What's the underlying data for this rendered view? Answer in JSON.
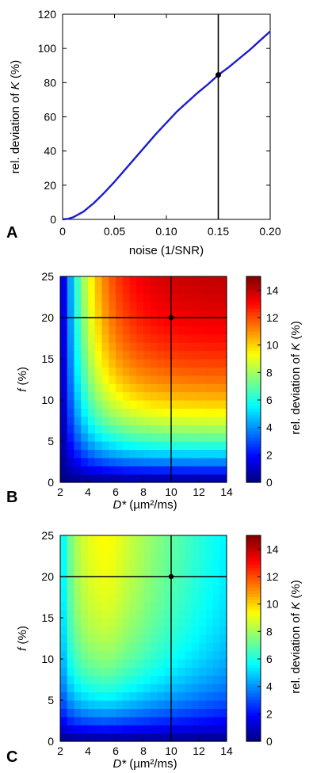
{
  "chart_data": [
    {
      "type": "line",
      "panel": "A",
      "xlabel": "noise (1/SNR)",
      "ylabel": "rel. deviation of K (%)",
      "xlim": [
        0,
        0.2
      ],
      "ylim": [
        0,
        120
      ],
      "xticks": [
        0,
        0.05,
        0.1,
        0.15,
        0.2
      ],
      "xtick_labels": [
        "0",
        "0.05",
        "0.10",
        "0.15",
        "0.20"
      ],
      "yticks": [
        0,
        20,
        40,
        60,
        80,
        100,
        120
      ],
      "ytick_labels": [
        "0",
        "20",
        "40",
        "60",
        "80",
        "100",
        "120"
      ],
      "x": [
        0,
        0.005,
        0.01,
        0.02,
        0.03,
        0.04,
        0.05,
        0.06,
        0.07,
        0.08,
        0.09,
        0.1,
        0.11,
        0.12,
        0.13,
        0.14,
        0.15,
        0.16,
        0.17,
        0.18,
        0.19,
        0.2
      ],
      "y": [
        0,
        0.3,
        1.2,
        4.5,
        9.5,
        15.5,
        22,
        29,
        36,
        43,
        50,
        56.5,
        63,
        68.5,
        74,
        79,
        84.5,
        89,
        94,
        99,
        104.5,
        110
      ],
      "line_color": "#1c1ccf",
      "marker": {
        "x": 0.15,
        "y": 84.5
      },
      "vline_x": 0.15,
      "grid": false
    },
    {
      "type": "heatmap",
      "panel": "B",
      "xlabel": "D* (µm²/ms)",
      "ylabel": "f (%)",
      "colorbar_label": "rel. deviation of K (%)",
      "xlim": [
        2,
        14
      ],
      "ylim": [
        0,
        25
      ],
      "xticks": [
        2,
        4,
        6,
        8,
        10,
        12,
        14
      ],
      "xtick_labels": [
        "2",
        "4",
        "6",
        "8",
        "10",
        "12",
        "14"
      ],
      "yticks": [
        0,
        5,
        10,
        15,
        20,
        25
      ],
      "ytick_labels": [
        "0",
        "5",
        "10",
        "15",
        "20",
        "25"
      ],
      "clim": [
        0,
        15
      ],
      "cticks": [
        0,
        2,
        4,
        6,
        8,
        10,
        12,
        14
      ],
      "ctick_labels": [
        "0",
        "2",
        "4",
        "6",
        "8",
        "10",
        "12",
        "14"
      ],
      "colormap": "jet",
      "cross": {
        "x": 10,
        "y": 20
      },
      "grid_x": [
        2.25,
        2.75,
        3.25,
        3.75,
        4.25,
        4.75,
        5.25,
        5.75,
        6.25,
        6.75,
        7.25,
        7.75,
        8.25,
        8.75,
        9.25,
        9.75,
        10.25,
        10.75,
        11.25,
        11.75,
        12.25,
        12.75,
        13.25,
        13.75
      ],
      "grid_y": [
        0.5,
        1.5,
        2.5,
        3.5,
        4.5,
        5.5,
        6.5,
        7.5,
        8.5,
        9.5,
        10.5,
        11.5,
        12.5,
        13.5,
        14.5,
        15.5,
        16.5,
        17.5,
        18.5,
        19.5,
        20.5,
        21.5,
        22.5,
        23.5,
        24.5
      ],
      "z_model": "value(D*, f) = 14.8 * (1 - exp(-0.12 * f)) * (1 - exp(-0.5 * (D* - 2))), read off the colour map"
    },
    {
      "type": "heatmap",
      "panel": "C",
      "xlabel": "D* (µm²/ms)",
      "ylabel": "f (%)",
      "colorbar_label": "rel. deviation of K (%)",
      "xlim": [
        2,
        14
      ],
      "ylim": [
        0,
        25
      ],
      "xticks": [
        2,
        4,
        6,
        8,
        10,
        12,
        14
      ],
      "xtick_labels": [
        "2",
        "4",
        "6",
        "8",
        "10",
        "12",
        "14"
      ],
      "yticks": [
        0,
        5,
        10,
        15,
        20,
        25
      ],
      "ytick_labels": [
        "0",
        "5",
        "10",
        "15",
        "20",
        "25"
      ],
      "clim": [
        0,
        15
      ],
      "cticks": [
        0,
        2,
        4,
        6,
        8,
        10,
        12,
        14
      ],
      "ctick_labels": [
        "0",
        "2",
        "4",
        "6",
        "8",
        "10",
        "12",
        "14"
      ],
      "colormap": "jet",
      "cross": {
        "x": 10,
        "y": 20
      },
      "grid_x": [
        2.25,
        2.75,
        3.25,
        3.75,
        4.25,
        4.75,
        5.25,
        5.75,
        6.25,
        6.75,
        7.25,
        7.75,
        8.25,
        8.75,
        9.25,
        9.75,
        10.25,
        10.75,
        11.25,
        11.75,
        12.25,
        12.75,
        13.25,
        13.75
      ],
      "grid_y": [
        0.5,
        1.5,
        2.5,
        3.5,
        4.5,
        5.5,
        6.5,
        7.5,
        8.5,
        9.5,
        10.5,
        11.5,
        12.5,
        13.5,
        14.5,
        15.5,
        16.5,
        17.5,
        18.5,
        19.5,
        20.5,
        21.5,
        22.5,
        23.5,
        24.5
      ],
      "z_model": "value(D*, f) peaks about 9.5 near D* = 5.5, f = 25; falls to about 5 at D* = 14 and to 0 at f = 0"
    }
  ]
}
